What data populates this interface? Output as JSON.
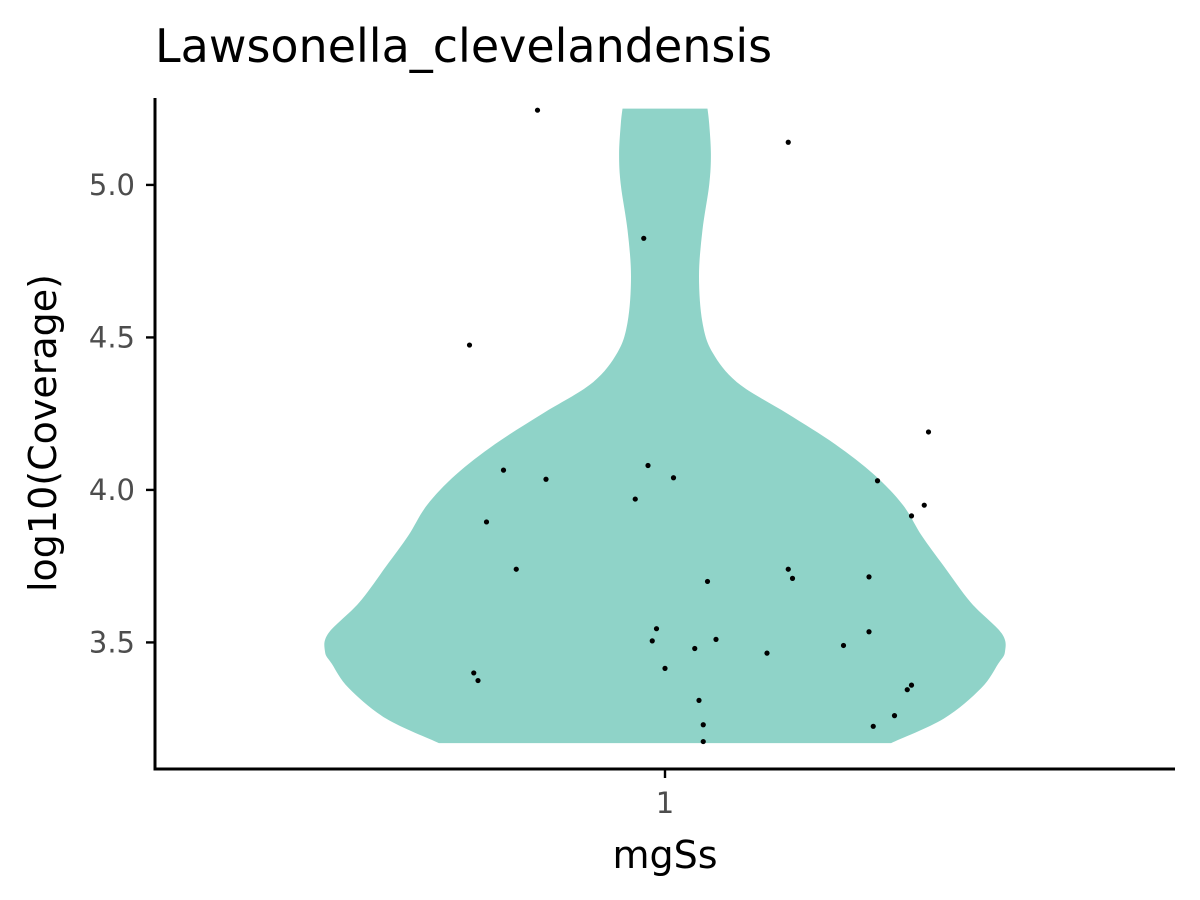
{
  "chart_data": {
    "type": "violin",
    "title": "Lawsonella_clevelandensis",
    "xlabel": "mgSs",
    "ylabel": "log10(Coverage)",
    "categories": [
      "1"
    ],
    "ylim": [
      3.085,
      5.285
    ],
    "yticks": [
      3.5,
      4.0,
      4.5,
      5.0
    ],
    "ytick_labels": [
      "3.5",
      "4.0",
      "4.5",
      "5.0"
    ],
    "grid": false,
    "legend": "none",
    "fill_color": "#8fd3c8",
    "point_color": "#000000",
    "violin": {
      "y_range": [
        3.17,
        5.25
      ],
      "density_profile": [
        {
          "y": 3.17,
          "width": 0.665
        },
        {
          "y": 3.25,
          "width": 0.82
        },
        {
          "y": 3.35,
          "width": 0.93
        },
        {
          "y": 3.43,
          "width": 0.98
        },
        {
          "y": 3.47,
          "width": 1.0
        },
        {
          "y": 3.53,
          "width": 0.99
        },
        {
          "y": 3.63,
          "width": 0.9
        },
        {
          "y": 3.75,
          "width": 0.82
        },
        {
          "y": 3.85,
          "width": 0.755
        },
        {
          "y": 3.95,
          "width": 0.7
        },
        {
          "y": 4.05,
          "width": 0.615
        },
        {
          "y": 4.15,
          "width": 0.5
        },
        {
          "y": 4.25,
          "width": 0.36
        },
        {
          "y": 4.35,
          "width": 0.215
        },
        {
          "y": 4.45,
          "width": 0.14
        },
        {
          "y": 4.55,
          "width": 0.11
        },
        {
          "y": 4.7,
          "width": 0.1
        },
        {
          "y": 4.85,
          "width": 0.11
        },
        {
          "y": 5.0,
          "width": 0.13
        },
        {
          "y": 5.1,
          "width": 0.135
        },
        {
          "y": 5.2,
          "width": 0.13
        },
        {
          "y": 5.25,
          "width": 0.125
        }
      ]
    },
    "points": [
      {
        "x": 0.85,
        "y": 5.245
      },
      {
        "x": 1.145,
        "y": 5.14
      },
      {
        "x": 0.975,
        "y": 4.825
      },
      {
        "x": 0.77,
        "y": 4.475
      },
      {
        "x": 1.31,
        "y": 4.19
      },
      {
        "x": 0.98,
        "y": 4.08
      },
      {
        "x": 0.81,
        "y": 4.065
      },
      {
        "x": 1.01,
        "y": 4.04
      },
      {
        "x": 0.86,
        "y": 4.035
      },
      {
        "x": 1.25,
        "y": 4.03
      },
      {
        "x": 0.965,
        "y": 3.97
      },
      {
        "x": 1.305,
        "y": 3.95
      },
      {
        "x": 1.29,
        "y": 3.915
      },
      {
        "x": 0.79,
        "y": 3.895
      },
      {
        "x": 0.825,
        "y": 3.74
      },
      {
        "x": 1.145,
        "y": 3.74
      },
      {
        "x": 1.24,
        "y": 3.715
      },
      {
        "x": 1.15,
        "y": 3.71
      },
      {
        "x": 1.05,
        "y": 3.7
      },
      {
        "x": 0.99,
        "y": 3.545
      },
      {
        "x": 1.24,
        "y": 3.535
      },
      {
        "x": 1.06,
        "y": 3.51
      },
      {
        "x": 0.985,
        "y": 3.505
      },
      {
        "x": 1.21,
        "y": 3.49
      },
      {
        "x": 1.035,
        "y": 3.48
      },
      {
        "x": 1.12,
        "y": 3.465
      },
      {
        "x": 1.0,
        "y": 3.415
      },
      {
        "x": 0.775,
        "y": 3.4
      },
      {
        "x": 0.78,
        "y": 3.375
      },
      {
        "x": 1.29,
        "y": 3.36
      },
      {
        "x": 1.285,
        "y": 3.345
      },
      {
        "x": 1.04,
        "y": 3.31
      },
      {
        "x": 1.27,
        "y": 3.26
      },
      {
        "x": 1.045,
        "y": 3.23
      },
      {
        "x": 1.245,
        "y": 3.225
      },
      {
        "x": 1.045,
        "y": 3.175
      }
    ]
  }
}
